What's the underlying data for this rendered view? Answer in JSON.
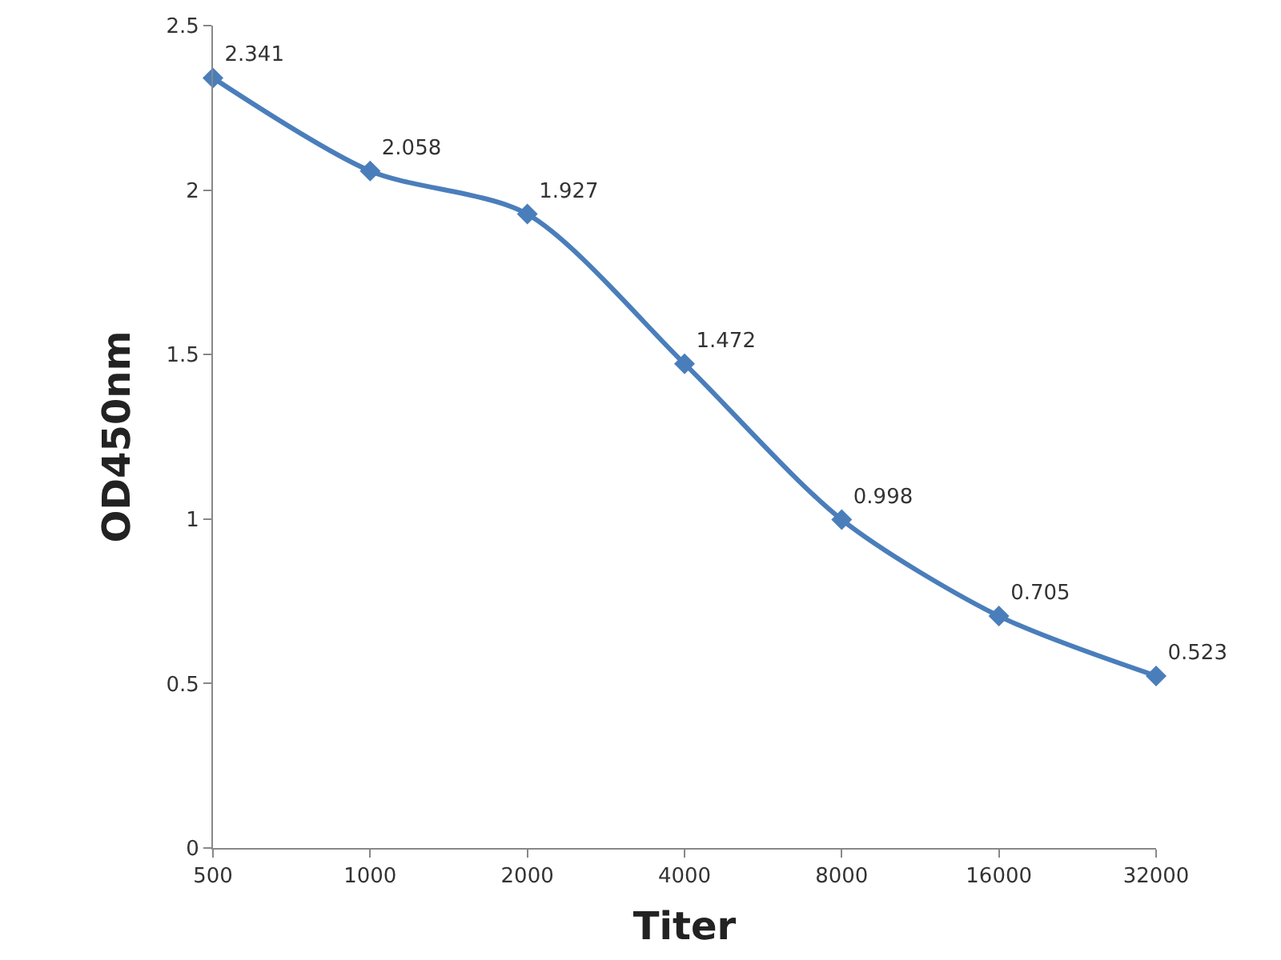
{
  "chart_data": {
    "type": "line",
    "xlabel": "Titer",
    "ylabel": "OD450nm",
    "categories": [
      "500",
      "1000",
      "2000",
      "4000",
      "8000",
      "16000",
      "32000"
    ],
    "series": [
      {
        "color": "#4a7ebb",
        "values": [
          2.341,
          2.058,
          1.927,
          1.472,
          0.998,
          0.705,
          0.523
        ]
      }
    ],
    "ylim": [
      0,
      2.5
    ],
    "yticks": [
      0,
      0.5,
      1,
      1.5,
      2,
      2.5
    ],
    "marker": "diamond",
    "line_style": "solid",
    "data_labels": true
  }
}
